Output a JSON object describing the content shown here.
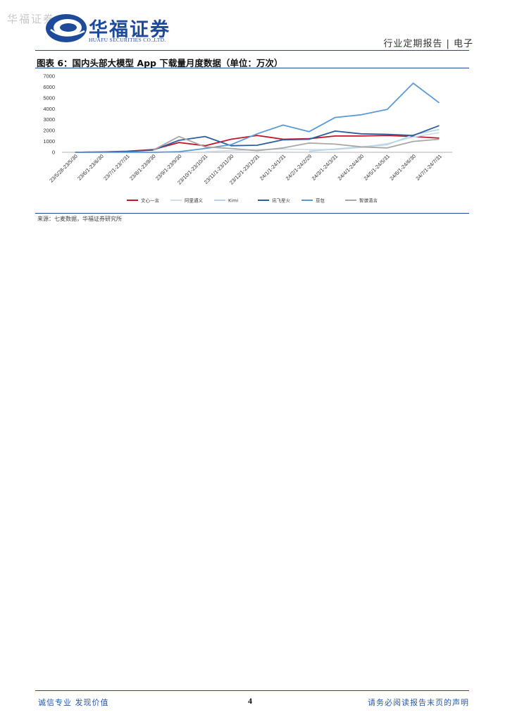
{
  "watermark": "华福证券",
  "header": {
    "company_cn": "华福证券",
    "company_en": "HUAFU SECURITIES CO.,LTD.",
    "report_type": "行业定期报告 | 电子"
  },
  "figure": {
    "title": "图表 6：国内头部大模型 App 下载量月度数据（单位：万次）",
    "source": "来源：七麦数据，华福证券研究所"
  },
  "chart_data": {
    "type": "line",
    "title": "",
    "xlabel": "",
    "ylabel": "",
    "ylim": [
      0,
      7000
    ],
    "yticks": [
      "0",
      "1000",
      "2000",
      "3000",
      "4000",
      "5000",
      "6000",
      "7000"
    ],
    "categories": [
      "23/5/28-23/5/30",
      "23/6/1-23/6/30",
      "23/7/1-23/7/31",
      "23/8/1-23/8/30",
      "23/9/1-23/9/30",
      "23/10/1-23/10/31",
      "23/11/1-23/11/30",
      "23/12/1-23/12/31",
      "24/1/1-24/1/31",
      "24/2/1-24/2/29",
      "24/3/1-24/3/31",
      "24/4/1-24/4/30",
      "24/5/1-24/5/31",
      "24/6/1-24/6/30",
      "24/7/1-24/7/31"
    ],
    "legend_position": "bottom",
    "grid": false,
    "series": [
      {
        "name": "文心一言",
        "color": "#c0182a",
        "values": [
          0,
          30,
          100,
          250,
          900,
          600,
          1200,
          1550,
          1200,
          1250,
          1500,
          1500,
          1550,
          1450,
          1300
        ]
      },
      {
        "name": "阿里通义",
        "color": "#d3dde8",
        "values": [
          null,
          null,
          null,
          null,
          null,
          50,
          150,
          250,
          300,
          250,
          250,
          450,
          800,
          1400,
          1800
        ]
      },
      {
        "name": "Kimi",
        "color": "#b7d4ea",
        "values": [
          null,
          null,
          null,
          null,
          null,
          null,
          null,
          null,
          null,
          100,
          300,
          500,
          700,
          1600,
          2100
        ]
      },
      {
        "name": "讯飞星火",
        "color": "#2c5f9e",
        "values": [
          0,
          20,
          80,
          200,
          1100,
          1450,
          600,
          650,
          1150,
          1200,
          1950,
          1700,
          1650,
          1550,
          2450
        ]
      },
      {
        "name": "豆包",
        "color": "#5b9bd5",
        "values": [
          0,
          0,
          0,
          0,
          50,
          350,
          700,
          1700,
          2500,
          1900,
          3200,
          3450,
          3950,
          6350,
          4550
        ]
      },
      {
        "name": "智谱清言",
        "color": "#a8a8a8",
        "values": [
          null,
          null,
          null,
          200,
          1450,
          500,
          350,
          150,
          400,
          850,
          750,
          500,
          400,
          1000,
          1200
        ]
      }
    ]
  },
  "footer": {
    "left": "诚信专业  发现价值",
    "page": "4",
    "right": "请务必阅读报告末页的声明"
  }
}
